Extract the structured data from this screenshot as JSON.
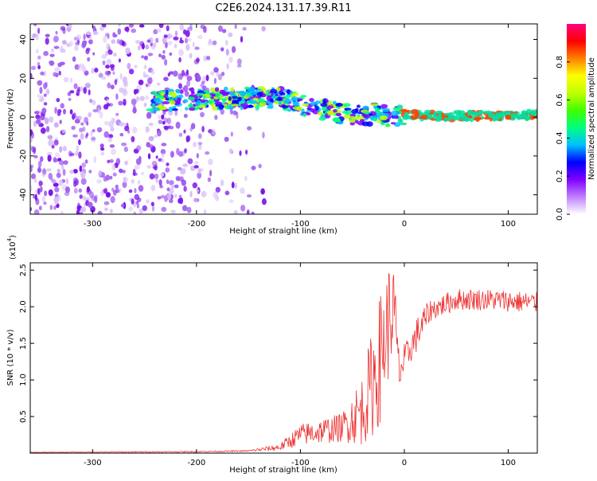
{
  "title": "C2E6.2024.131.17.39.R11",
  "chart_data": [
    {
      "type": "heatmap",
      "xlabel": "Height of straight line (km)",
      "ylabel": "Frequency (Hz)",
      "xlim": [
        -360,
        128
      ],
      "ylim": [
        -50,
        48
      ],
      "x_ticks": [
        -300,
        -200,
        -100,
        0,
        100
      ],
      "y_ticks": [
        -40,
        -20,
        0,
        20,
        40
      ],
      "colorbar": {
        "label": "Normalized spectral amplitude",
        "range": [
          0,
          1
        ],
        "ticks": [
          0.0,
          0.2,
          0.4,
          0.6,
          0.8
        ],
        "tick_labels": [
          "0.0",
          "0.2",
          "0.4",
          "0.6",
          "0.8"
        ],
        "colors": [
          "#ffffff",
          "#c080ff",
          "#8000ff",
          "#0000ff",
          "#00c0ff",
          "#00ff80",
          "#40ff00",
          "#c0ff00",
          "#ffff00",
          "#ff8000",
          "#ff0000",
          "#ff0080"
        ]
      },
      "ridge": {
        "x": [
          -245,
          -200,
          -150,
          -120,
          -90,
          -60,
          -35,
          -25,
          -15,
          0,
          50,
          128
        ],
        "y": [
          8,
          9,
          10,
          10,
          5,
          2,
          1,
          3,
          0,
          1,
          0.5,
          1
        ]
      },
      "noise_region_x": [
        -360,
        -220
      ]
    },
    {
      "type": "line",
      "xlabel": "Height of straight line (km)",
      "ylabel": "SNR (10 * v/v)",
      "y_multiplier": "(x10",
      "y_multiplier_exp": "4",
      "y_multiplier_close": ")",
      "xlim": [
        -360,
        128
      ],
      "ylim": [
        0,
        2.6
      ],
      "x_ticks": [
        -300,
        -200,
        -100,
        0,
        100
      ],
      "y_ticks": [
        0.5,
        1.0,
        1.5,
        2.0,
        2.5
      ],
      "y_tick_labels": [
        "0.5",
        "1.0",
        "1.5",
        "2.0",
        "2.5"
      ],
      "color": "#ee3333",
      "segments": [
        {
          "x": [
            -360,
            -200,
            -150,
            -120,
            -100,
            -60,
            -40,
            -25,
            -15,
            -10,
            -5,
            5,
            15,
            25,
            50,
            80,
            128
          ],
          "y": [
            0.01,
            0.02,
            0.03,
            0.08,
            0.25,
            0.35,
            0.6,
            1.2,
            1.8,
            2.0,
            1.1,
            1.4,
            1.7,
            1.95,
            2.1,
            2.1,
            2.05
          ],
          "amplitude": [
            0.005,
            0.008,
            0.01,
            0.05,
            0.15,
            0.2,
            0.5,
            0.9,
            0.8,
            0.6,
            0.3,
            0.2,
            0.25,
            0.15,
            0.15,
            0.15,
            0.15
          ]
        }
      ]
    }
  ]
}
